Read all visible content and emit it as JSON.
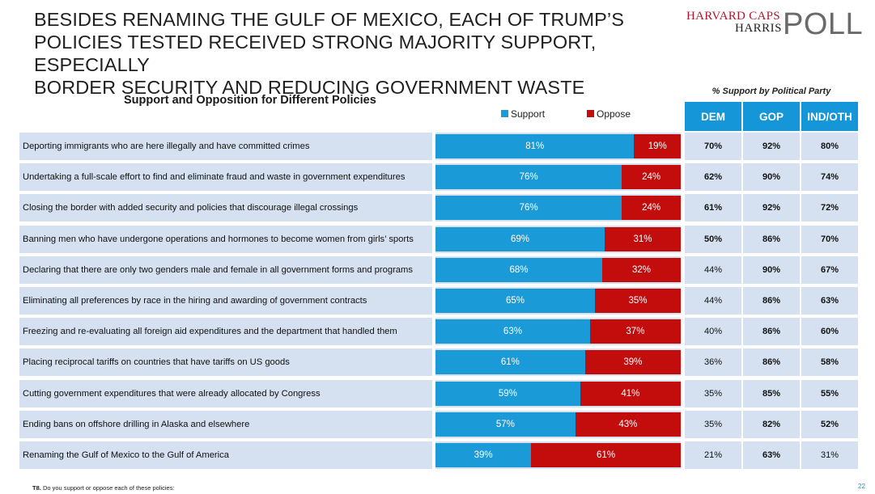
{
  "header": {
    "title_lines": [
      "BESIDES RENAMING THE GULF OF MEXICO, EACH OF TRUMP’S",
      "POLICIES TESTED RECEIVED STRONG MAJORITY SUPPORT, ESPECIALLY",
      "BORDER SECURITY AND REDUCING GOVERNMENT WASTE"
    ],
    "logo": {
      "line1": "HARVARD CAPS",
      "line2": "HARRIS",
      "line3": "POLL"
    }
  },
  "chart_data": {
    "type": "bar",
    "stacked": true,
    "orientation": "horizontal",
    "title": "Support and Opposition for Different Policies",
    "legend": [
      "Support",
      "Oppose"
    ],
    "colors": {
      "support": "#1b9ad8",
      "oppose": "#c30d0d",
      "header": "#1496d8",
      "row_bg": "#d5e1f0"
    },
    "xlim": [
      0,
      100
    ],
    "categories": [
      "Deporting immigrants who are here illegally and have committed crimes",
      "Undertaking a full-scale effort to find and eliminate fraud and waste in government expenditures",
      "Closing the border with added security and policies that discourage illegal crossings",
      "Banning men who have undergone operations and hormones to become women from girls’ sports",
      "Declaring that there are only two genders male and female in all government forms and programs",
      "Eliminating all preferences by race in the hiring and awarding of government contracts",
      "Freezing and re-evaluating all foreign aid expenditures and the department that handled them",
      "Placing reciprocal tariffs on countries that have tariffs on US goods",
      "Cutting government expenditures that were already allocated by Congress",
      "Ending bans on offshore drilling in Alaska and elsewhere",
      "Renaming the Gulf of Mexico to the Gulf of America"
    ],
    "series": [
      {
        "name": "Support",
        "values": [
          81,
          76,
          76,
          69,
          68,
          65,
          63,
          61,
          59,
          57,
          39
        ]
      },
      {
        "name": "Oppose",
        "values": [
          19,
          24,
          24,
          31,
          32,
          35,
          37,
          39,
          41,
          43,
          61
        ]
      }
    ]
  },
  "party_table": {
    "title": "% Support by Political Party",
    "columns": [
      "DEM",
      "GOP",
      "IND/OTH"
    ],
    "rows": [
      [
        "70%",
        "92%",
        "80%"
      ],
      [
        "62%",
        "90%",
        "74%"
      ],
      [
        "61%",
        "92%",
        "72%"
      ],
      [
        "50%",
        "86%",
        "70%"
      ],
      [
        "44%",
        "90%",
        "67%"
      ],
      [
        "44%",
        "86%",
        "63%"
      ],
      [
        "40%",
        "86%",
        "60%"
      ],
      [
        "36%",
        "86%",
        "58%"
      ],
      [
        "35%",
        "85%",
        "55%"
      ],
      [
        "35%",
        "82%",
        "52%"
      ],
      [
        "21%",
        "63%",
        "31%"
      ]
    ],
    "bold": [
      [
        true,
        true,
        true
      ],
      [
        true,
        true,
        true
      ],
      [
        true,
        true,
        true
      ],
      [
        true,
        true,
        true
      ],
      [
        false,
        true,
        true
      ],
      [
        false,
        true,
        true
      ],
      [
        false,
        true,
        true
      ],
      [
        false,
        true,
        true
      ],
      [
        false,
        true,
        true
      ],
      [
        false,
        true,
        true
      ],
      [
        false,
        true,
        false
      ]
    ]
  },
  "footer": {
    "question_id": "T8.",
    "question_text": "Do you support or oppose each of these policies:",
    "page_number": "22"
  }
}
